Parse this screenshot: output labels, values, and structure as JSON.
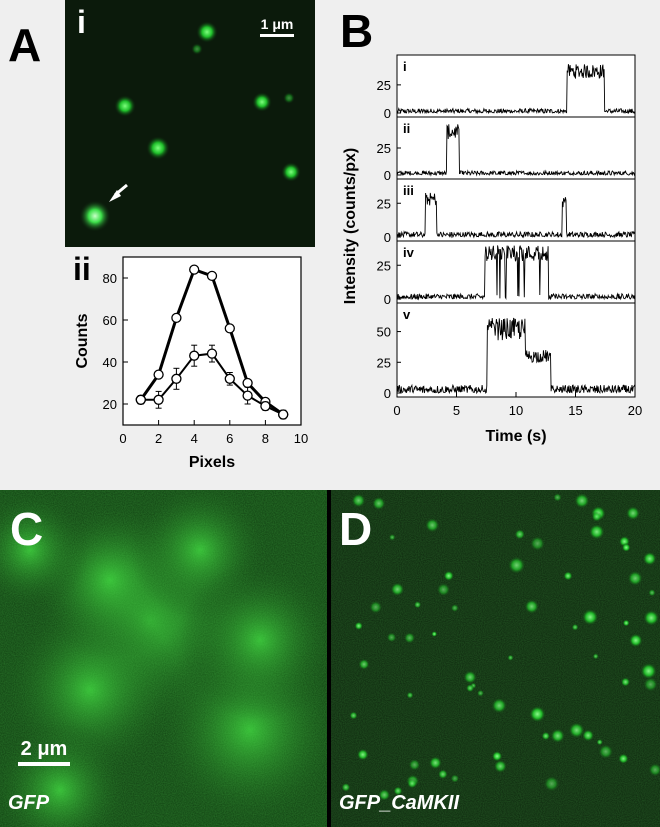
{
  "panels": {
    "A": {
      "letter": "A",
      "sub_i": "i",
      "sub_ii": "ii",
      "scale_bar": "1 μm"
    },
    "B": {
      "letter": "B"
    },
    "C": {
      "letter": "C",
      "label": "GFP",
      "scale_bar": "2 μm"
    },
    "D": {
      "letter": "D",
      "label": "GFP_CaMKII"
    }
  },
  "chart_data": [
    {
      "type": "line",
      "panel": "A-ii",
      "xlabel": "Pixels",
      "ylabel": "Counts",
      "xlim": [
        0,
        10
      ],
      "ylim": [
        10,
        90
      ],
      "xticks": [
        0,
        2,
        4,
        6,
        8,
        10
      ],
      "yticks": [
        20,
        40,
        60,
        80
      ],
      "series": [
        {
          "x": [
            1,
            2,
            3,
            4,
            5,
            6,
            7,
            8,
            9
          ],
          "values": [
            22,
            34,
            61,
            84,
            81,
            56,
            30,
            21,
            15
          ]
        },
        {
          "x": [
            1,
            2,
            3,
            4,
            5,
            6,
            7,
            8,
            9
          ],
          "values": [
            22,
            22,
            32,
            43,
            44,
            32,
            24,
            19,
            15
          ],
          "errors": [
            2,
            4,
            5,
            5,
            4,
            3,
            4,
            2,
            2
          ]
        }
      ]
    },
    {
      "type": "line",
      "panel": "B",
      "xlabel": "Time (s)",
      "ylabel": "Intensity (counts/px)",
      "xlim": [
        0,
        20
      ],
      "xticks": [
        0,
        5,
        10,
        15,
        20
      ],
      "traces": [
        {
          "label": "i",
          "ylim": [
            0,
            48
          ],
          "yticks": [
            0,
            25
          ],
          "baseline_noise": 3,
          "events": [
            [
              14.3,
              17.4,
              37
            ]
          ]
        },
        {
          "label": "ii",
          "ylim": [
            0,
            50
          ],
          "yticks": [
            0,
            25
          ],
          "baseline_noise": 3,
          "events": [
            [
              4.2,
              5.2,
              40
            ]
          ]
        },
        {
          "label": "iii",
          "ylim": [
            0,
            40
          ],
          "yticks": [
            0,
            25
          ],
          "baseline_noise": 3,
          "events": [
            [
              2.4,
              3.3,
              28
            ],
            [
              13.9,
              14.2,
              26
            ]
          ]
        },
        {
          "label": "iv",
          "ylim": [
            0,
            40
          ],
          "yticks": [
            0,
            25
          ],
          "baseline_noise": 3,
          "events": [
            [
              7.4,
              12.7,
              34
            ]
          ]
        },
        {
          "label": "v",
          "ylim": [
            0,
            70
          ],
          "yticks": [
            0,
            25,
            50
          ],
          "baseline_noise": 5,
          "events": [
            [
              7.6,
              10.8,
              52
            ],
            [
              10.8,
              12.9,
              30
            ]
          ]
        }
      ]
    }
  ]
}
